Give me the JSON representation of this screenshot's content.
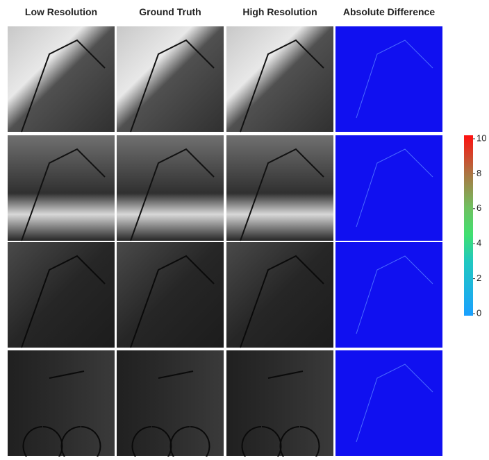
{
  "columns": [
    "Low Resolution",
    "Ground Truth",
    "High Resolution",
    "Absolute Difference"
  ],
  "colorbar": {
    "lim": [
      0,
      10
    ],
    "ticks": [
      0,
      2,
      4,
      6,
      8,
      10
    ]
  }
}
